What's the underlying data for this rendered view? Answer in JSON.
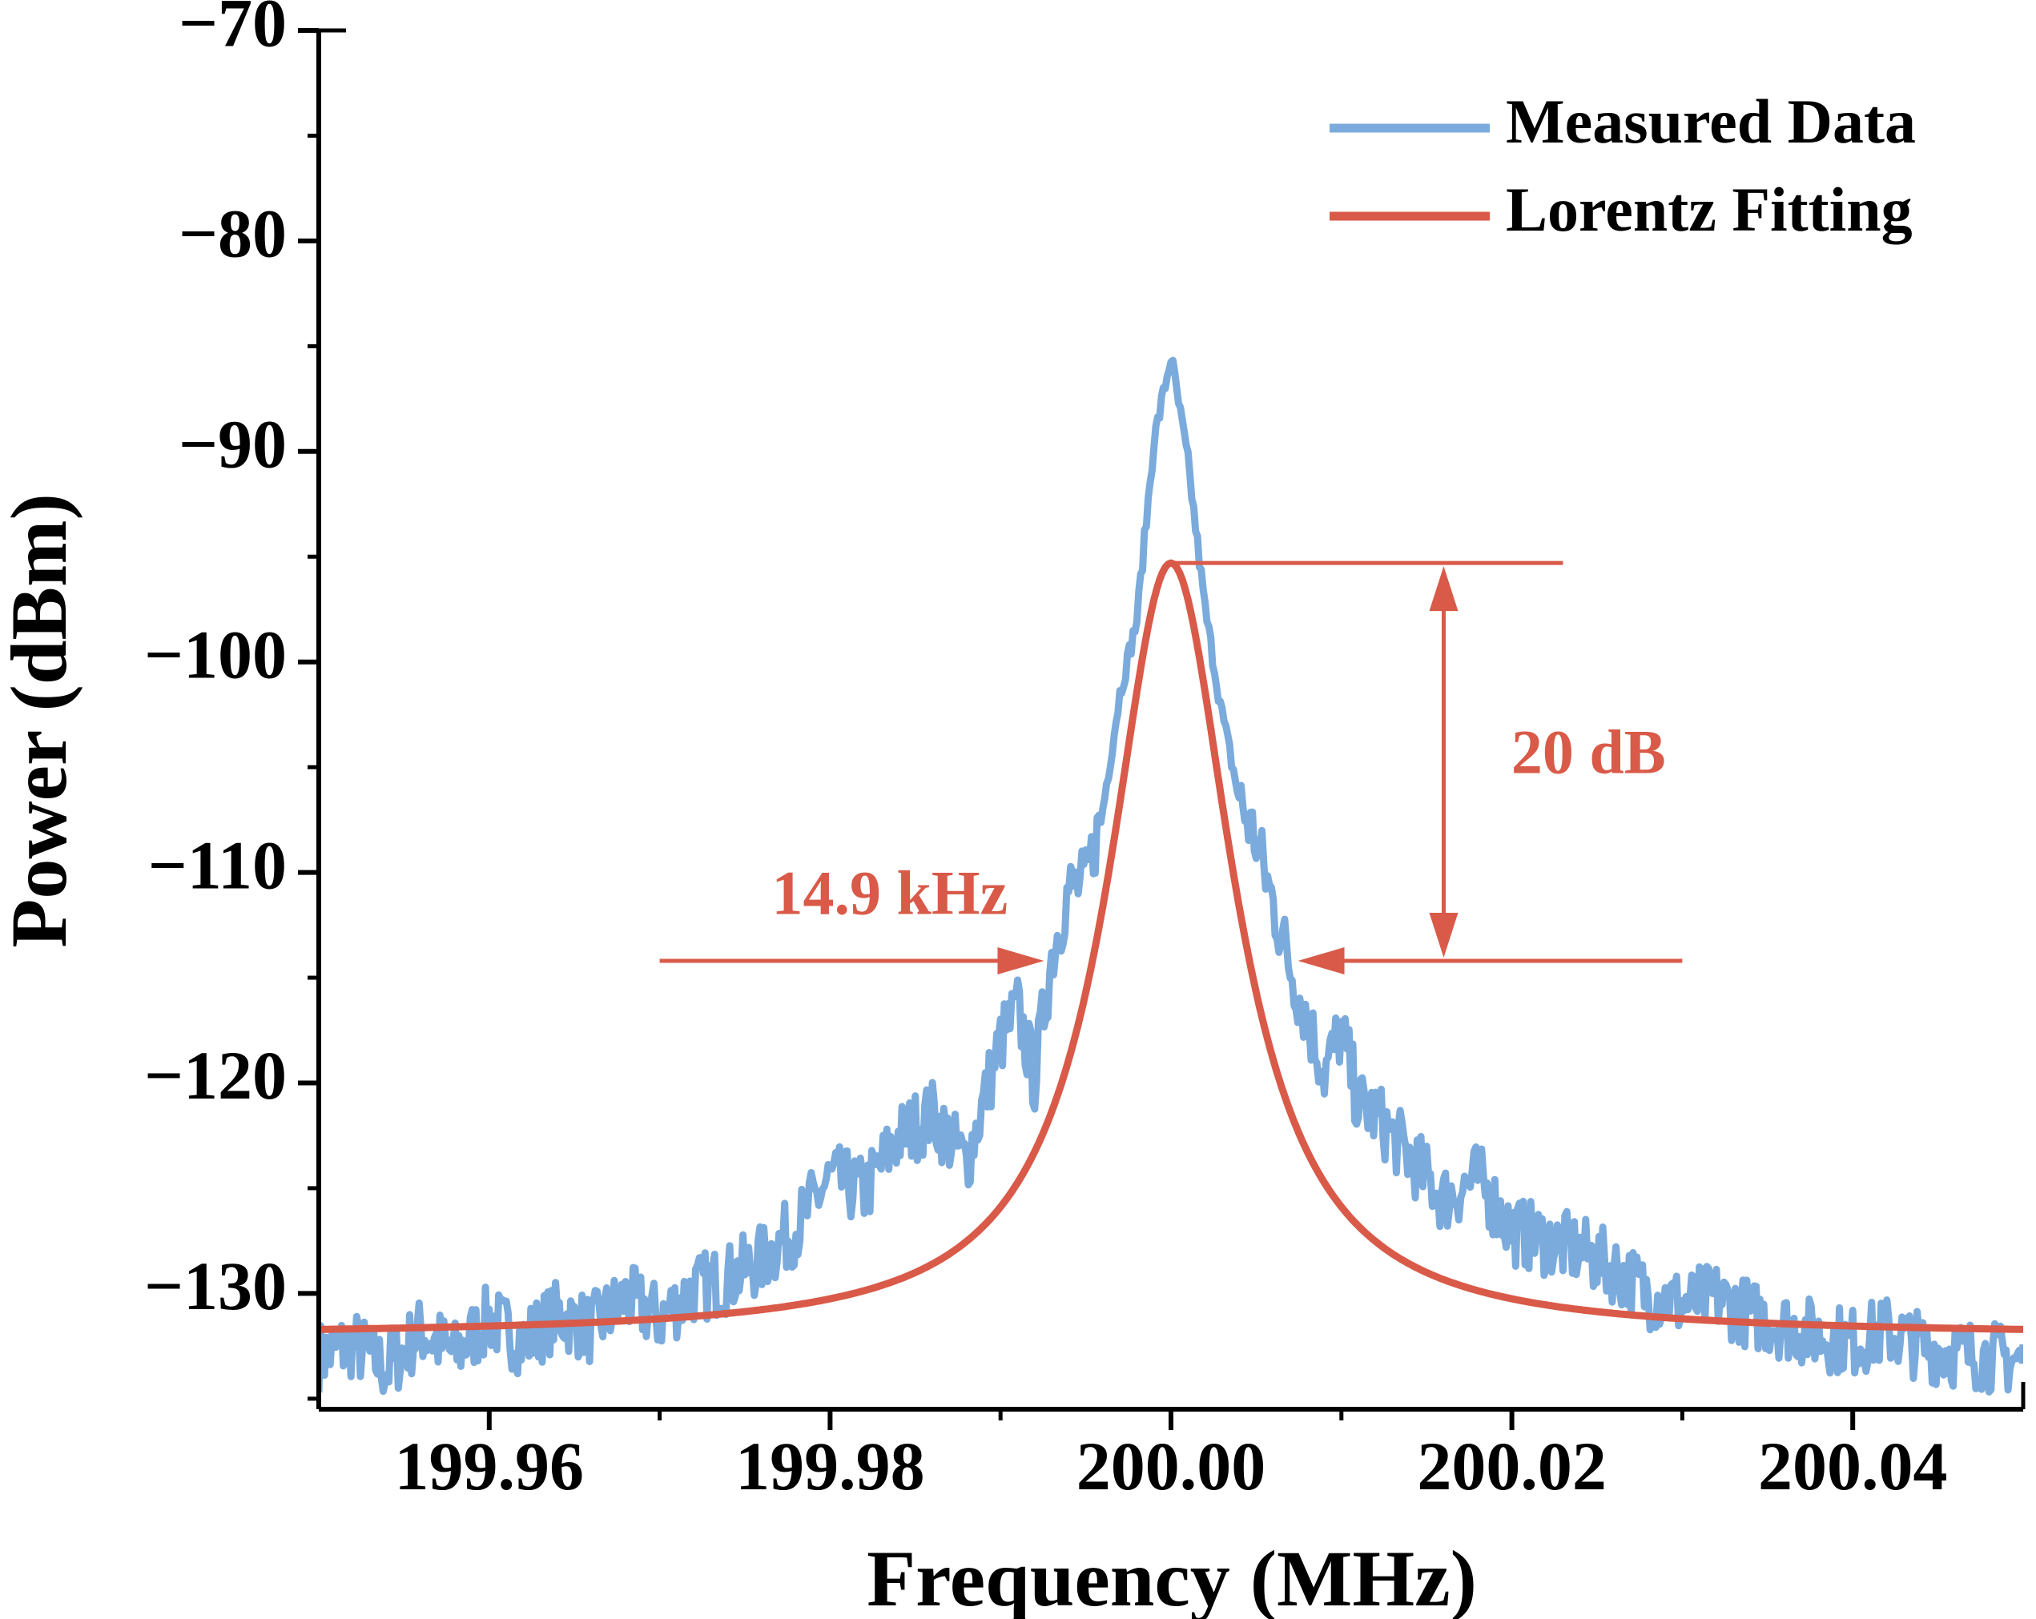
{
  "chart_data": {
    "type": "line",
    "title": "",
    "xlabel": "Frequency (MHz)",
    "ylabel": "Power (dBm)",
    "xlim": [
      199.95,
      200.05
    ],
    "ylim": [
      -135.5,
      -70
    ],
    "xticks": [
      199.96,
      199.98,
      200.0,
      200.02,
      200.04
    ],
    "xtick_labels": [
      "199.96",
      "199.98",
      "200.00",
      "200.02",
      "200.04"
    ],
    "yticks": [
      -70,
      -80,
      -90,
      -100,
      -110,
      -120,
      -130
    ],
    "ytick_labels": [
      "−70",
      "−80",
      "−90",
      "−100",
      "−110",
      "−120",
      "−130"
    ],
    "grid": false,
    "legend_position": "top-right",
    "series": [
      {
        "name": "Measured Data",
        "color": "#7aabdc",
        "x": [
          199.95,
          199.952,
          199.954,
          199.956,
          199.958,
          199.96,
          199.962,
          199.964,
          199.966,
          199.968,
          199.97,
          199.972,
          199.974,
          199.976,
          199.978,
          199.98,
          199.982,
          199.984,
          199.986,
          199.988,
          199.99,
          199.991,
          199.992,
          199.993,
          199.994,
          199.995,
          199.996,
          199.997,
          199.998,
          199.999,
          200.0,
          200.001,
          200.002,
          200.003,
          200.004,
          200.005,
          200.006,
          200.007,
          200.008,
          200.009,
          200.01,
          200.011,
          200.012,
          200.014,
          200.016,
          200.018,
          200.02,
          200.022,
          200.024,
          200.026,
          200.028,
          200.03,
          200.032,
          200.034,
          200.036,
          200.038,
          200.04,
          200.042,
          200.044,
          200.046,
          200.048,
          200.05
        ],
        "y": [
          -133.0,
          -132.4,
          -133.6,
          -131.8,
          -132.9,
          -131.2,
          -132.3,
          -131.0,
          -131.7,
          -130.2,
          -131.2,
          -129.8,
          -129.3,
          -128.4,
          -126.9,
          -124.5,
          -125.2,
          -122.6,
          -121.5,
          -123.8,
          -118.0,
          -116.5,
          -119.8,
          -114.0,
          -110.8,
          -110.5,
          -107.0,
          -101.5,
          -98.0,
          -89.5,
          -85.5,
          -90.5,
          -97.5,
          -102.5,
          -106.5,
          -108.5,
          -111.5,
          -114.5,
          -117.0,
          -119.5,
          -117.5,
          -121.0,
          -121.5,
          -123.5,
          -125.5,
          -124.5,
          -127.0,
          -127.5,
          -128.0,
          -128.8,
          -130.0,
          -130.5,
          -130.2,
          -131.0,
          -131.5,
          -132.0,
          -132.3,
          -131.8,
          -132.5,
          -132.8,
          -133.0,
          -133.2
        ]
      },
      {
        "name": "Lorentz Fitting",
        "color": "#d95a48",
        "model": "lorentzian",
        "center": 200.0,
        "peak": -95.3,
        "floor": -132.0,
        "half_width": 0.00447
      }
    ],
    "annotations": [
      {
        "text": "20 dB",
        "color": "#d95a48",
        "from_y": -95.3,
        "to_y": -114.2,
        "x": 200.016
      },
      {
        "text": "14.9 kHz",
        "color": "#d95a48",
        "left_x": 199.99255,
        "right_x": 200.00745,
        "y": -114.2
      }
    ]
  }
}
